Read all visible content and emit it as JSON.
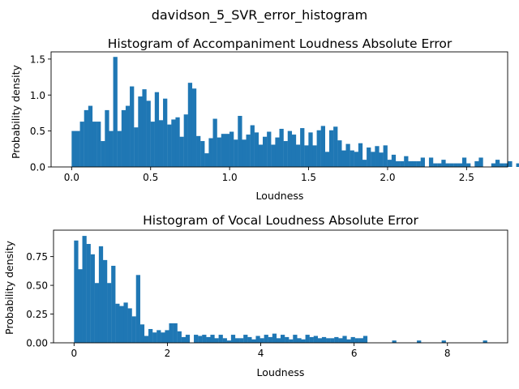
{
  "suptitle": "davidson_5_SVR_error_histogram",
  "chart_data": [
    {
      "type": "bar",
      "title": "Histogram of Accompaniment Loudness Absolute Error",
      "xlabel": "Loudness",
      "ylabel": "Probability density",
      "xlim": [
        -0.13,
        2.76
      ],
      "ylim": [
        0,
        1.6
      ],
      "xticks": [
        "0.0",
        "0.5",
        "1.0",
        "1.5",
        "2.0",
        "2.5"
      ],
      "xtick_values": [
        0,
        0.5,
        1.0,
        1.5,
        2.0,
        2.5
      ],
      "yticks": [
        "0.0",
        "0.5",
        "1.0",
        "1.5"
      ],
      "ytick_values": [
        0,
        0.5,
        1.0,
        1.5
      ],
      "bin_start": 0.0,
      "bin_width": 0.0263,
      "values": [
        0.5,
        0.5,
        0.63,
        0.79,
        0.85,
        0.63,
        0.63,
        0.36,
        0.79,
        0.5,
        1.53,
        0.5,
        0.79,
        0.85,
        1.12,
        0.55,
        0.98,
        1.08,
        0.92,
        0.63,
        1.04,
        0.65,
        0.95,
        0.59,
        0.66,
        0.69,
        0.42,
        0.73,
        1.17,
        1.09,
        0.43,
        0.36,
        0.19,
        0.4,
        0.67,
        0.41,
        0.46,
        0.46,
        0.49,
        0.38,
        0.71,
        0.38,
        0.45,
        0.58,
        0.48,
        0.31,
        0.42,
        0.49,
        0.31,
        0.41,
        0.53,
        0.36,
        0.5,
        0.45,
        0.31,
        0.54,
        0.3,
        0.48,
        0.3,
        0.51,
        0.57,
        0.21,
        0.51,
        0.56,
        0.37,
        0.23,
        0.32,
        0.23,
        0.21,
        0.33,
        0.1,
        0.27,
        0.21,
        0.29,
        0.2,
        0.3,
        0.1,
        0.17,
        0.08,
        0.08,
        0.15,
        0.08,
        0.08,
        0.08,
        0.13,
        0.0,
        0.13,
        0.05,
        0.05,
        0.1,
        0.05,
        0.05,
        0.05,
        0.05,
        0.13,
        0.05,
        0.0,
        0.08,
        0.13,
        0.0,
        0.0,
        0.05,
        0.1,
        0.05,
        0.05,
        0.08,
        0.0,
        0.05,
        0.05,
        0.08,
        0.13,
        0.0,
        0.0,
        0.0,
        0.0,
        0.0,
        0.0,
        0.0,
        0.0,
        0.0,
        0.0,
        0.0,
        0.0,
        0.0,
        0.0,
        0.0,
        0.0,
        0.0,
        0.0,
        0.0,
        0.0,
        0.0,
        0.0,
        0.0,
        0.0,
        0.0,
        0.0,
        0.0,
        0.0,
        0.0,
        0.0,
        0.0,
        0.0,
        0.0,
        0.0,
        0.0,
        0.0,
        0.0,
        0.0,
        0.0
      ],
      "grid": false,
      "color": "#1f77b4"
    },
    {
      "type": "bar",
      "title": "Histogram of Vocal Loudness Absolute Error",
      "xlabel": "Loudness",
      "ylabel": "Probability density",
      "xlim": [
        -0.44,
        9.29
      ],
      "ylim": [
        0,
        0.98
      ],
      "xticks": [
        "0",
        "2",
        "4",
        "6",
        "8"
      ],
      "xtick_values": [
        0,
        2,
        4,
        6,
        8
      ],
      "yticks": [
        "0.00",
        "0.25",
        "0.50",
        "0.75"
      ],
      "ytick_values": [
        0,
        0.25,
        0.5,
        0.75
      ],
      "bin_start": 0.0,
      "bin_width": 0.0885,
      "values": [
        0.89,
        0.64,
        0.93,
        0.86,
        0.77,
        0.52,
        0.84,
        0.72,
        0.52,
        0.67,
        0.34,
        0.32,
        0.35,
        0.3,
        0.23,
        0.59,
        0.16,
        0.06,
        0.12,
        0.09,
        0.11,
        0.09,
        0.11,
        0.17,
        0.17,
        0.1,
        0.05,
        0.07,
        0.0,
        0.07,
        0.06,
        0.07,
        0.05,
        0.07,
        0.04,
        0.07,
        0.04,
        0.02,
        0.07,
        0.04,
        0.04,
        0.07,
        0.05,
        0.03,
        0.06,
        0.04,
        0.07,
        0.05,
        0.08,
        0.04,
        0.07,
        0.05,
        0.03,
        0.07,
        0.04,
        0.03,
        0.07,
        0.05,
        0.06,
        0.04,
        0.05,
        0.04,
        0.04,
        0.05,
        0.04,
        0.06,
        0.03,
        0.05,
        0.04,
        0.04,
        0.06,
        0.0,
        0.0,
        0.0,
        0.0,
        0.0,
        0.0,
        0.02,
        0.0,
        0.0,
        0.0,
        0.0,
        0.0,
        0.02,
        0.0,
        0.0,
        0.0,
        0.0,
        0.0,
        0.02,
        0.0,
        0.0,
        0.0,
        0.0,
        0.0,
        0.0,
        0.0,
        0.0,
        0.0,
        0.02
      ]
    }
  ]
}
